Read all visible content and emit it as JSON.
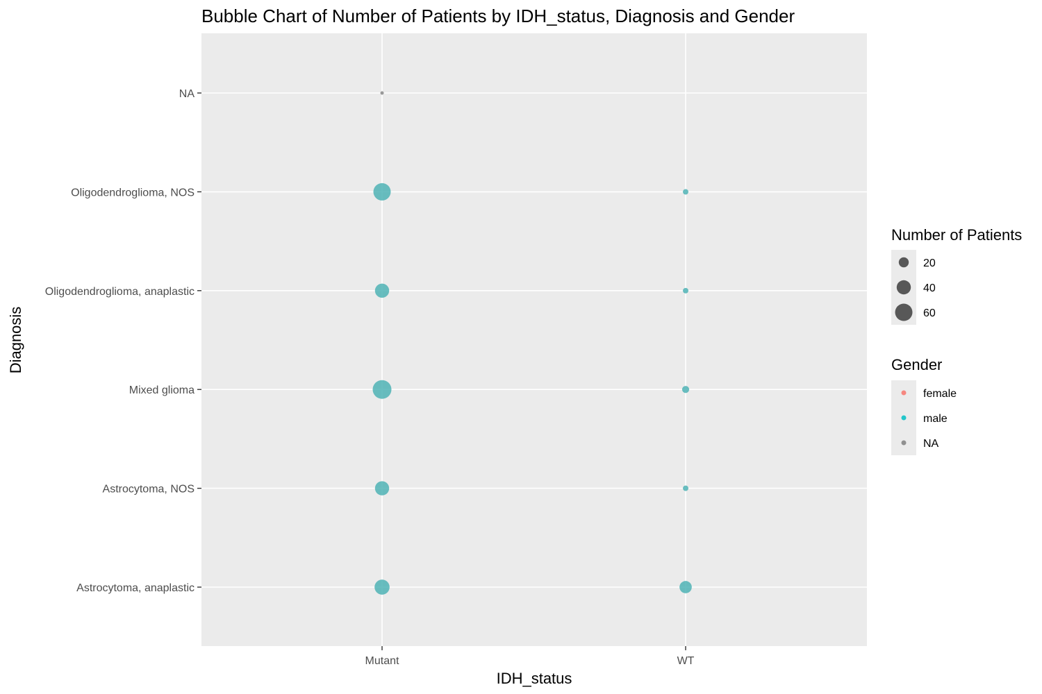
{
  "chart_data": {
    "type": "scatter",
    "title": "Bubble Chart of Number of Patients by IDH_status, Diagnosis and Gender",
    "xlabel": "IDH_status",
    "ylabel": "Diagnosis",
    "x_categories": [
      "Mutant",
      "WT"
    ],
    "y_categories": [
      "Astrocytoma, anaplastic",
      "Astrocytoma, NOS",
      "Mixed glioma",
      "Oligodendroglioma, anaplastic",
      "Oligodendroglioma, NOS",
      "NA"
    ],
    "points": [
      {
        "x": "Mutant",
        "y": "NA",
        "count": 1,
        "gender": "NA"
      },
      {
        "x": "Mutant",
        "y": "Oligodendroglioma, NOS",
        "count": 60,
        "gender": "male"
      },
      {
        "x": "WT",
        "y": "Oligodendroglioma, NOS",
        "count": 6,
        "gender": "male"
      },
      {
        "x": "Mutant",
        "y": "Oligodendroglioma, anaplastic",
        "count": 40,
        "gender": "male"
      },
      {
        "x": "WT",
        "y": "Oligodendroglioma, anaplastic",
        "count": 6,
        "gender": "male"
      },
      {
        "x": "Mutant",
        "y": "Mixed glioma",
        "count": 70,
        "gender": "male"
      },
      {
        "x": "WT",
        "y": "Mixed glioma",
        "count": 10,
        "gender": "male"
      },
      {
        "x": "Mutant",
        "y": "Astrocytoma, NOS",
        "count": 40,
        "gender": "male"
      },
      {
        "x": "WT",
        "y": "Astrocytoma, NOS",
        "count": 6,
        "gender": "male"
      },
      {
        "x": "Mutant",
        "y": "Astrocytoma, anaplastic",
        "count": 45,
        "gender": "male"
      },
      {
        "x": "WT",
        "y": "Astrocytoma, anaplastic",
        "count": 30,
        "gender": "male"
      }
    ],
    "size_legend": {
      "title": "Number of Patients",
      "labels": [
        "20",
        "40",
        "60"
      ],
      "values": [
        20,
        40,
        60
      ]
    },
    "color_legend": {
      "title": "Gender",
      "entries": [
        {
          "label": "female",
          "color": "#F8766D"
        },
        {
          "label": "male",
          "color": "#00BFC4"
        },
        {
          "label": "NA",
          "color": "#808080"
        }
      ]
    },
    "grid": true,
    "legend_position": "right",
    "colors": {
      "panel_background": "#EBEBEB",
      "grid": "#FFFFFF",
      "legend_key_background": "#EBEBEB",
      "size_key_fill": "#333333",
      "bubble_male": "#4FB3B5"
    }
  }
}
